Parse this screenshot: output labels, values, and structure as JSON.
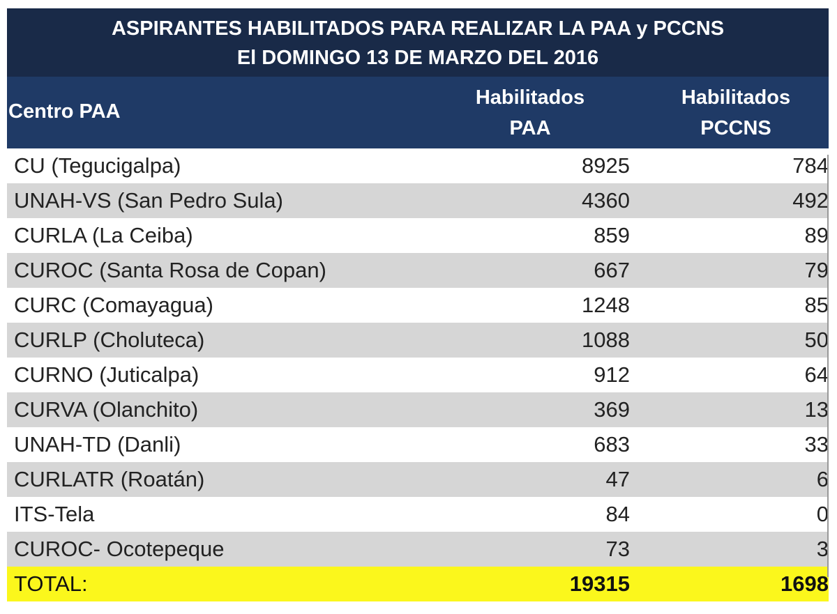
{
  "title": {
    "line1": "ASPIRANTES HABILITADOS PARA REALIZAR LA PAA  y PCCNS",
    "line2": "El DOMINGO 13 DE MARZO DEL 2016"
  },
  "columns": {
    "centro": "Centro PAA",
    "paa_line1": "Habilitados",
    "paa_line2": "PAA",
    "pccns_line1": "Habilitados",
    "pccns_line2": "PCCNS"
  },
  "rows": [
    {
      "centro": "CU (Tegucigalpa)",
      "paa": "8925",
      "pccns": "784"
    },
    {
      "centro": "UNAH-VS (San Pedro Sula)",
      "paa": "4360",
      "pccns": "492"
    },
    {
      "centro": "CURLA (La Ceiba)",
      "paa": "859",
      "pccns": "89"
    },
    {
      "centro": "CUROC (Santa Rosa de Copan)",
      "paa": "667",
      "pccns": "79"
    },
    {
      "centro": "CURC (Comayagua)",
      "paa": "1248",
      "pccns": "85"
    },
    {
      "centro": "CURLP (Choluteca)",
      "paa": "1088",
      "pccns": "50"
    },
    {
      "centro": "CURNO (Juticalpa)",
      "paa": "912",
      "pccns": "64"
    },
    {
      "centro": "CURVA (Olanchito)",
      "paa": "369",
      "pccns": "13"
    },
    {
      "centro": "UNAH-TD (Danli)",
      "paa": "683",
      "pccns": "33"
    },
    {
      "centro": "CURLATR (Roatán)",
      "paa": "47",
      "pccns": "6"
    },
    {
      "centro": "ITS-Tela",
      "paa": "84",
      "pccns": "0"
    },
    {
      "centro": "CUROC- Ocotepeque",
      "paa": "73",
      "pccns": "3"
    }
  ],
  "total": {
    "label": "TOTAL:",
    "paa": "19315",
    "pccns": "1698"
  },
  "colors": {
    "title_bg": "#192a48",
    "header_bg": "#1f3a66",
    "stripe": "#d6d6d6",
    "total_bg": "#fbf71c"
  }
}
